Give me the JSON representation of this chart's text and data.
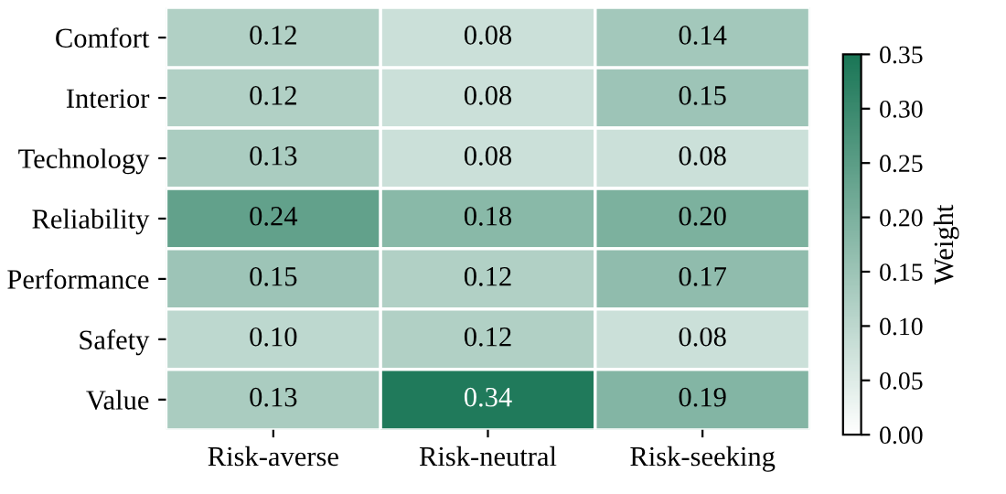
{
  "chart_data": {
    "type": "heatmap",
    "categories": [
      "Risk-averse",
      "Risk-neutral",
      "Risk-seeking"
    ],
    "y_categories": [
      "Comfort",
      "Interior",
      "Technology",
      "Reliability",
      "Performance",
      "Safety",
      "Value"
    ],
    "cells": [
      [
        0.12,
        0.08,
        0.14
      ],
      [
        0.12,
        0.08,
        0.15
      ],
      [
        0.13,
        0.08,
        0.08
      ],
      [
        0.24,
        0.18,
        0.2
      ],
      [
        0.15,
        0.12,
        0.17
      ],
      [
        0.1,
        0.12,
        0.08
      ],
      [
        0.13,
        0.34,
        0.19
      ]
    ],
    "cell_labels": [
      [
        "0.12",
        "0.08",
        "0.14"
      ],
      [
        "0.12",
        "0.08",
        "0.15"
      ],
      [
        "0.13",
        "0.08",
        "0.08"
      ],
      [
        "0.24",
        "0.18",
        "0.20"
      ],
      [
        "0.15",
        "0.12",
        "0.17"
      ],
      [
        "0.10",
        "0.12",
        "0.08"
      ],
      [
        "0.13",
        "0.34",
        "0.19"
      ]
    ],
    "clim": [
      0.0,
      0.35
    ],
    "cticks": [
      {
        "value": 0.0,
        "label": "0.00"
      },
      {
        "value": 0.05,
        "label": "0.05"
      },
      {
        "value": 0.1,
        "label": "0.10"
      },
      {
        "value": 0.15,
        "label": "0.15"
      },
      {
        "value": 0.2,
        "label": "0.20"
      },
      {
        "value": 0.25,
        "label": "0.25"
      },
      {
        "value": 0.3,
        "label": "0.30"
      },
      {
        "value": 0.35,
        "label": "0.35"
      }
    ],
    "clabel": "Weight",
    "color": "#1a7656",
    "data_labels": true
  }
}
